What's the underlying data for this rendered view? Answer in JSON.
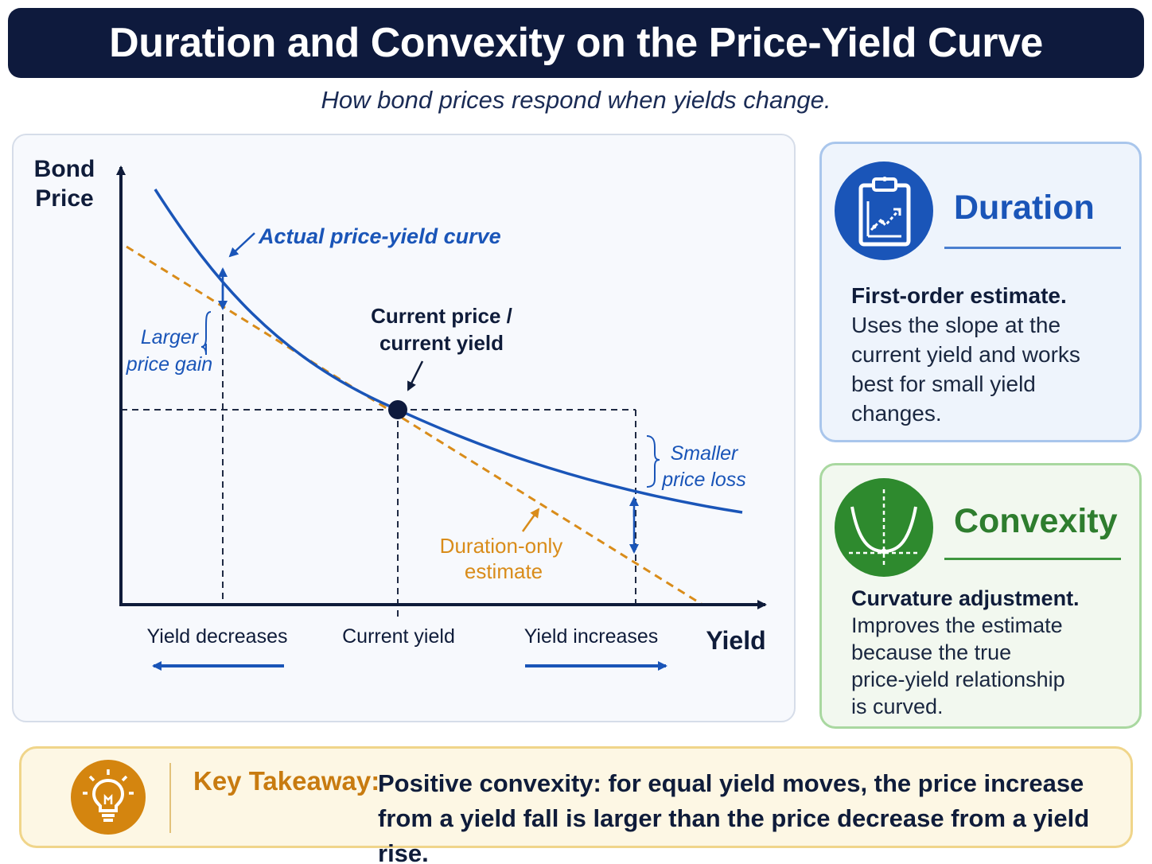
{
  "header": {
    "title": "Duration and Convexity on the Price-Yield Curve",
    "subtitle": "How bond prices respond when yields change."
  },
  "diagram": {
    "y_axis_label_line1": "Bond",
    "y_axis_label_line2": "Price",
    "x_axis_label": "Yield",
    "curve_label": "Actual price-yield curve",
    "current_point_label_line1": "Current price /",
    "current_point_label_line2": "current yield",
    "gain_label_line1": "Larger",
    "gain_label_line2": "price gain",
    "loss_label_line1": "Smaller",
    "loss_label_line2": "price loss",
    "estimate_label_line1": "Duration-only",
    "estimate_label_line2": "estimate",
    "x_tick_left": "Yield decreases",
    "x_tick_center": "Current yield",
    "x_tick_right": "Yield increases",
    "colors": {
      "curve": "#1a55b8",
      "estimate": "#d98c1a",
      "axis": "#0f1c3a",
      "guides": "#1f2a44"
    }
  },
  "cards": {
    "duration": {
      "icon": "clipboard-chart-icon",
      "title": "Duration",
      "lead": "First-order estimate.",
      "line1": "Uses the slope at the",
      "line2": "current yield and works",
      "line3": "best for small yield",
      "line4": "changes.",
      "accent": "#1a55b8"
    },
    "convexity": {
      "icon": "convex-curve-icon",
      "title": "Convexity",
      "lead": "Curvature adjustment.",
      "line1": "Improves the estimate",
      "line2": "because the true",
      "line3": "price-yield relationship",
      "line4": "is curved.",
      "accent": "#2e8a2e"
    }
  },
  "takeaway": {
    "icon": "lightbulb-icon",
    "label": "Key Takeaway:",
    "line1": "Positive convexity: for equal yield moves, the price increase",
    "line2": "from a yield fall is larger than the price decrease from a yield rise.",
    "accent": "#d4850f"
  }
}
